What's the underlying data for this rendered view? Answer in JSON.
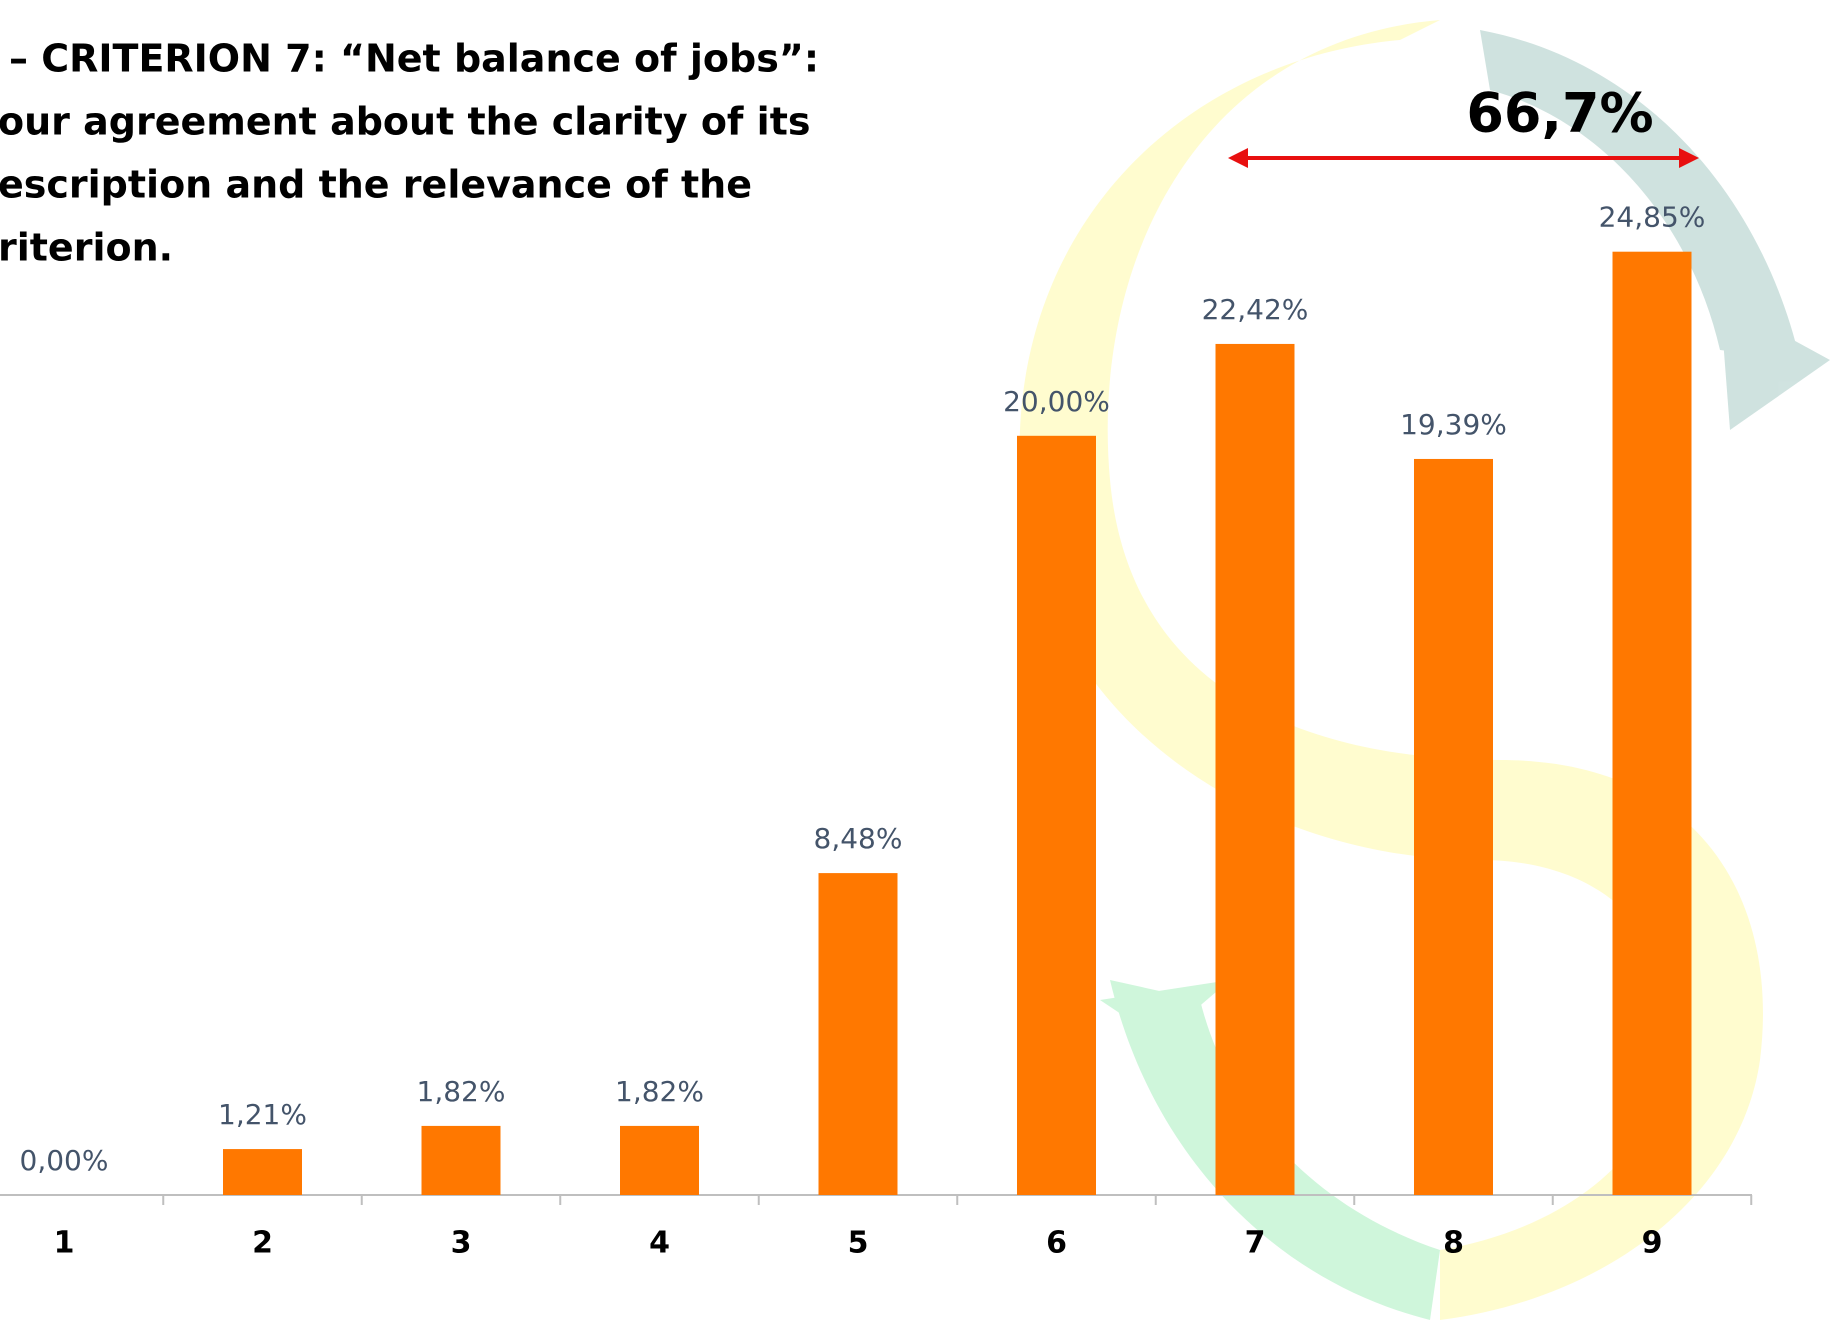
{
  "chart_data": {
    "type": "bar",
    "title": [
      "– CRITERION 7: “Net balance of jobs”:",
      "our agreement about the clarity of its",
      "escription and the relevance of the",
      "riterion."
    ],
    "categories": [
      "1",
      "2",
      "3",
      "4",
      "5",
      "6",
      "7",
      "8",
      "9"
    ],
    "values": [
      0,
      1.21,
      1.82,
      1.82,
      8.48,
      20,
      22.42,
      19.39,
      24.85
    ],
    "value_labels": [
      "0,00%",
      "1,21%",
      "1,82%",
      "1,82%",
      "8,48%",
      "20,00%",
      "22,42%",
      "19,39%",
      "24,85%"
    ],
    "color": "#ff7800",
    "ylim": [
      0,
      25
    ],
    "annotation": "66,7%"
  }
}
